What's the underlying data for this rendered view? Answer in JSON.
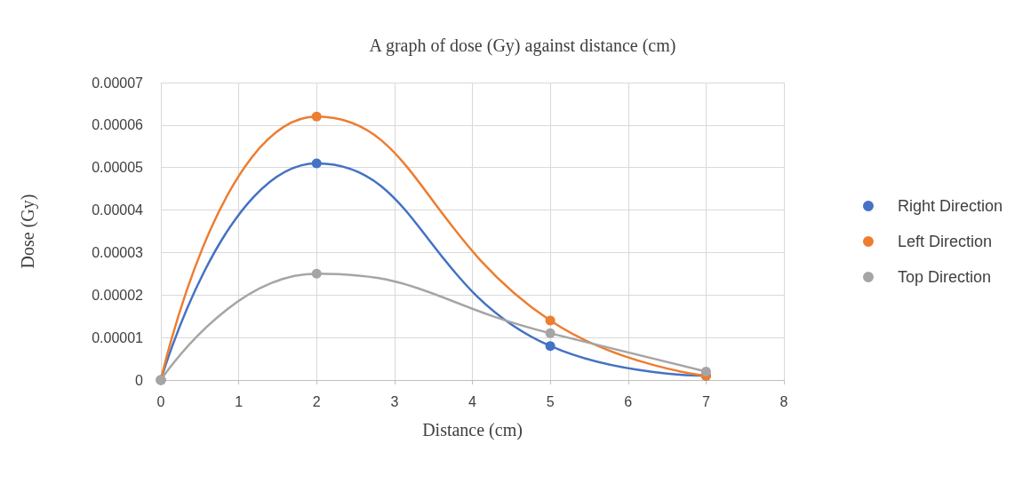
{
  "chart_data": {
    "type": "line",
    "title": "A graph of dose (Gy) against distance (cm)",
    "xlabel": "Distance (cm)",
    "ylabel": "Dose (Gy)",
    "x": [
      0,
      2,
      5,
      7
    ],
    "series": [
      {
        "name": "Right Direction",
        "color": "#4472c4",
        "values": [
          0,
          5.1e-05,
          8e-06,
          1e-06
        ]
      },
      {
        "name": "Left Direction",
        "color": "#ed7d31",
        "values": [
          0,
          6.2e-05,
          1.4e-05,
          1e-06
        ]
      },
      {
        "name": "Top Direction",
        "color": "#a5a5a5",
        "values": [
          0,
          2.5e-05,
          1.1e-05,
          2e-06
        ]
      }
    ],
    "xlim": [
      0,
      8
    ],
    "xticks": [
      0,
      1,
      2,
      3,
      4,
      5,
      6,
      7,
      8
    ],
    "ylim": [
      0,
      7e-05
    ],
    "yticks": [
      0,
      {
        "value": 1e-05,
        "label": "0.00001"
      },
      {
        "value": 2e-05,
        "label": "0.00002"
      },
      {
        "value": 3e-05,
        "label": "0.00003"
      },
      {
        "value": 4e-05,
        "label": "0.00004"
      },
      {
        "value": 5e-05,
        "label": "0.00005"
      },
      {
        "value": 6e-05,
        "label": "0.00006"
      },
      {
        "value": 7e-05,
        "label": "0.00007"
      }
    ],
    "grid": true,
    "legend": "right",
    "marker": "circle",
    "line_style": "solid"
  }
}
